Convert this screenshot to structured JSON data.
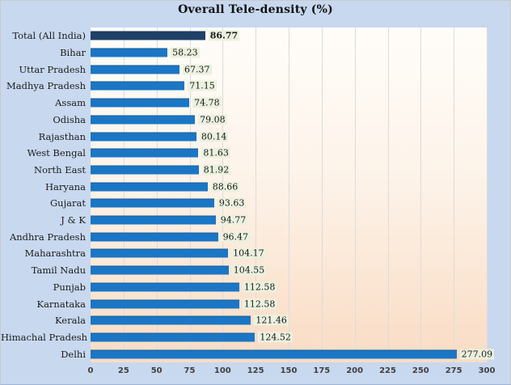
{
  "colors": {
    "page_background": "#c8d8ef",
    "bar": "#1b76c5",
    "bar_highlight": "#1f4068",
    "value_label_background": "#ebf1df",
    "gridline": "#dcdcdc",
    "tick_text": "#3f3f3f",
    "plot_gradient_top": "#fffdf9",
    "plot_gradient_bottom": "#f9dcc4"
  },
  "chart_data": {
    "type": "bar",
    "orientation": "horizontal",
    "title": "Overall Tele-density (%)",
    "categories": [
      "Total (All India)",
      "Bihar",
      "Uttar Pradesh",
      "Madhya Pradesh",
      "Assam",
      "Odisha",
      "Rajasthan",
      "West Bengal",
      "North East",
      "Haryana",
      "Gujarat",
      "J & K",
      "Andhra Pradesh",
      "Maharashtra",
      "Tamil Nadu",
      "Punjab",
      "Karnataka",
      "Kerala",
      "Himachal Pradesh",
      "Delhi"
    ],
    "values": [
      86.77,
      58.23,
      67.37,
      71.15,
      74.78,
      79.08,
      80.14,
      81.63,
      81.92,
      88.66,
      93.63,
      94.77,
      96.47,
      104.17,
      104.55,
      112.58,
      112.58,
      121.46,
      124.52,
      277.09
    ],
    "highlight_index": 0,
    "xlabel": "",
    "ylabel": "",
    "xlim": [
      0,
      300
    ],
    "xticks": [
      0,
      25,
      50,
      75,
      100,
      125,
      150,
      175,
      200,
      225,
      250,
      275,
      300
    ],
    "grid": true,
    "legend": false,
    "data_labels": true,
    "data_label_decimals": 2
  }
}
